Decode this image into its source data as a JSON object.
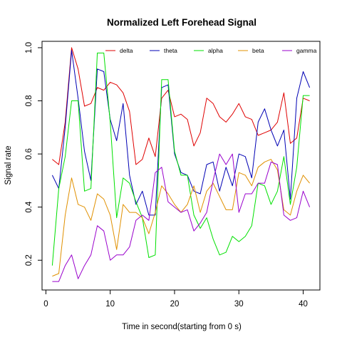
{
  "chart_data": {
    "type": "line",
    "title": "Normalized Left Forehead Signal",
    "xlabel": "Time in second(starting from 0 s)",
    "ylabel": "Signal rate",
    "xlim": [
      -0.6,
      42.6
    ],
    "ylim": [
      0.088,
      1.024
    ],
    "x_ticks": [
      0,
      10,
      20,
      30,
      40
    ],
    "y_ticks": [
      0.2,
      0.4,
      0.6,
      0.8,
      1.0
    ],
    "y_tick_labels": [
      "0.2",
      "0.4",
      "0.6",
      "0.8",
      "1.0"
    ],
    "grid": false,
    "legend_position": "top",
    "x": [
      1,
      2,
      3,
      4,
      5,
      6,
      7,
      8,
      9,
      10,
      11,
      12,
      13,
      14,
      15,
      16,
      17,
      18,
      19,
      20,
      21,
      22,
      23,
      24,
      25,
      26,
      27,
      28,
      29,
      30,
      31,
      32,
      33,
      34,
      35,
      36,
      37,
      38,
      39,
      40,
      41
    ],
    "series": [
      {
        "name": "delta",
        "color": "#DF0000",
        "values": [
          0.58,
          0.56,
          0.72,
          1.0,
          0.92,
          0.78,
          0.79,
          0.85,
          0.84,
          0.87,
          0.86,
          0.83,
          0.76,
          0.56,
          0.58,
          0.66,
          0.59,
          0.81,
          0.84,
          0.74,
          0.75,
          0.73,
          0.63,
          0.68,
          0.81,
          0.79,
          0.74,
          0.72,
          0.75,
          0.79,
          0.74,
          0.73,
          0.67,
          0.68,
          0.69,
          0.72,
          0.83,
          0.64,
          0.66,
          0.81,
          0.8
        ]
      },
      {
        "name": "theta",
        "color": "#0000B4",
        "values": [
          0.52,
          0.47,
          0.7,
          0.99,
          0.81,
          0.61,
          0.5,
          0.92,
          0.91,
          0.73,
          0.65,
          0.79,
          0.52,
          0.41,
          0.46,
          0.37,
          0.37,
          0.85,
          0.86,
          0.6,
          0.53,
          0.52,
          0.46,
          0.45,
          0.56,
          0.57,
          0.46,
          0.55,
          0.48,
          0.6,
          0.59,
          0.51,
          0.72,
          0.77,
          0.69,
          0.63,
          0.69,
          0.43,
          0.81,
          0.91,
          0.85
        ]
      },
      {
        "name": "alpha",
        "color": "#00E000",
        "values": [
          0.18,
          0.47,
          0.59,
          0.8,
          0.8,
          0.46,
          0.47,
          0.98,
          0.98,
          0.72,
          0.36,
          0.51,
          0.49,
          0.42,
          0.36,
          0.21,
          0.22,
          0.88,
          0.88,
          0.61,
          0.52,
          0.52,
          0.37,
          0.32,
          0.36,
          0.28,
          0.22,
          0.23,
          0.29,
          0.27,
          0.29,
          0.33,
          0.49,
          0.48,
          0.41,
          0.46,
          0.59,
          0.41,
          0.55,
          0.82,
          0.82
        ]
      },
      {
        "name": "beta",
        "color": "#E09000",
        "values": [
          0.14,
          0.15,
          0.37,
          0.51,
          0.41,
          0.4,
          0.35,
          0.45,
          0.43,
          0.37,
          0.24,
          0.41,
          0.38,
          0.38,
          0.36,
          0.3,
          0.38,
          0.48,
          0.45,
          0.41,
          0.38,
          0.41,
          0.48,
          0.38,
          0.46,
          0.49,
          0.44,
          0.39,
          0.39,
          0.53,
          0.52,
          0.48,
          0.55,
          0.57,
          0.58,
          0.54,
          0.39,
          0.37,
          0.46,
          0.52,
          0.49
        ]
      },
      {
        "name": "gamma",
        "color": "#9900CC",
        "values": [
          0.12,
          0.12,
          0.18,
          0.22,
          0.13,
          0.18,
          0.22,
          0.33,
          0.31,
          0.2,
          0.22,
          0.22,
          0.25,
          0.35,
          0.37,
          0.35,
          0.53,
          0.55,
          0.42,
          0.4,
          0.38,
          0.39,
          0.31,
          0.34,
          0.38,
          0.5,
          0.6,
          0.56,
          0.6,
          0.38,
          0.45,
          0.45,
          0.49,
          0.49,
          0.57,
          0.56,
          0.37,
          0.35,
          0.36,
          0.46,
          0.4
        ]
      }
    ]
  }
}
